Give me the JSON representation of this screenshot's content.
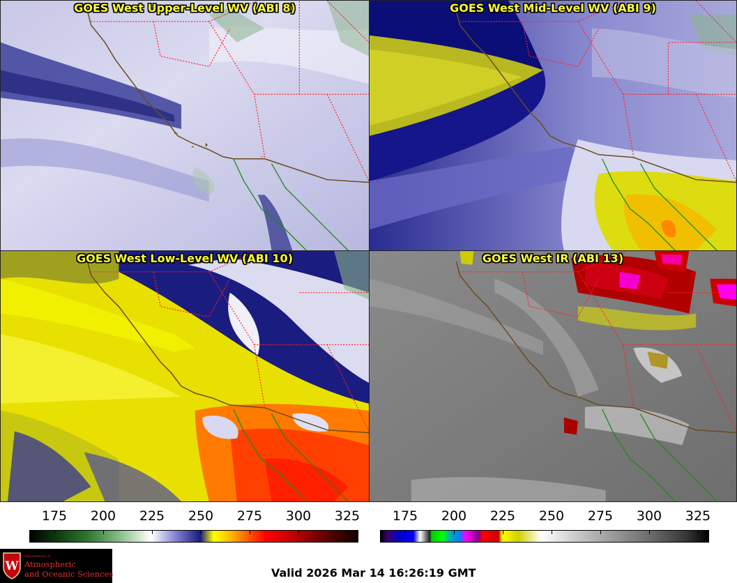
{
  "panels": [
    {
      "title": "GOES West Upper-Level WV (ABI 8)"
    },
    {
      "title": "GOES West Mid-Level WV (ABI 9)"
    },
    {
      "title": "GOES West Low-Level WV (ABI 10)"
    },
    {
      "title": "GOES West IR (ABI 13)"
    }
  ],
  "colorbar_left": {
    "ticks": [
      "175",
      "200",
      "225",
      "250",
      "275",
      "300",
      "325"
    ]
  },
  "colorbar_right": {
    "ticks": [
      "175",
      "200",
      "225",
      "250",
      "275",
      "300",
      "325"
    ]
  },
  "logo": {
    "dept": "Department of",
    "line1": "Atmospheric",
    "line2": "and Oceanic Sciences",
    "letter": "W"
  },
  "valid_time": "Valid 2026 Mar 14 16:26:19 GMT",
  "colors": {
    "title_text": "#ffff33",
    "state_border": "#ff2020",
    "coastline": "#6b4a1e",
    "mexico_coast": "#1a8a1a"
  }
}
